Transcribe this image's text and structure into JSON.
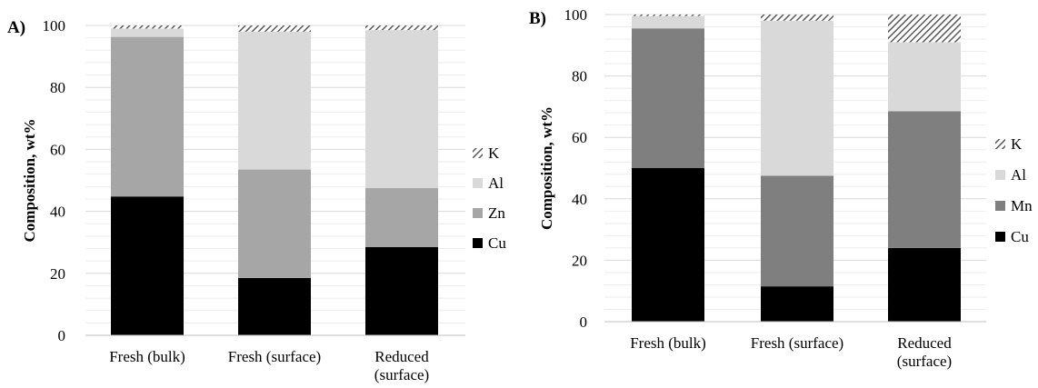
{
  "chart_data": [
    {
      "type": "bar",
      "stacked": true,
      "panel_label": "A)",
      "ylabel": "Composition, wt%",
      "ylim": [
        0,
        100
      ],
      "yticks": [
        0,
        20,
        40,
        60,
        80,
        100
      ],
      "grid": true,
      "legend_position": "right",
      "categories": [
        {
          "lines": [
            "Fresh (bulk)"
          ]
        },
        {
          "lines": [
            "Fresh (surface)"
          ]
        },
        {
          "lines": [
            "Reduced",
            "(surface)"
          ]
        }
      ],
      "series": [
        {
          "name": "Cu",
          "color": "#000000",
          "pattern": "solid",
          "values": [
            44.8,
            18.5,
            28.5
          ]
        },
        {
          "name": "Zn",
          "color": "#a6a6a6",
          "pattern": "solid",
          "values": [
            51.5,
            35.0,
            19.0
          ]
        },
        {
          "name": "Al",
          "color": "#d9d9d9",
          "pattern": "solid",
          "values": [
            2.7,
            44.5,
            51.0
          ]
        },
        {
          "name": "K",
          "color": "#595959",
          "pattern": "hatch",
          "values": [
            1.0,
            2.0,
            1.5
          ]
        }
      ]
    },
    {
      "type": "bar",
      "stacked": true,
      "panel_label": "B)",
      "ylabel": "Composition, wt%",
      "ylim": [
        0,
        100
      ],
      "yticks": [
        0,
        20,
        40,
        60,
        80,
        100
      ],
      "grid": true,
      "legend_position": "right",
      "categories": [
        {
          "lines": [
            "Fresh (bulk)"
          ]
        },
        {
          "lines": [
            "Fresh (surface)"
          ]
        },
        {
          "lines": [
            "Reduced",
            "(surface)"
          ]
        }
      ],
      "series": [
        {
          "name": "Cu",
          "color": "#000000",
          "pattern": "solid",
          "values": [
            50.0,
            11.5,
            24.0
          ]
        },
        {
          "name": "Mn",
          "color": "#7f7f7f",
          "pattern": "solid",
          "values": [
            45.5,
            36.0,
            44.5
          ]
        },
        {
          "name": "Al",
          "color": "#d9d9d9",
          "pattern": "solid",
          "values": [
            4.0,
            50.5,
            22.5
          ]
        },
        {
          "name": "K",
          "color": "#595959",
          "pattern": "hatch",
          "values": [
            0.5,
            2.0,
            9.0
          ]
        }
      ]
    }
  ]
}
